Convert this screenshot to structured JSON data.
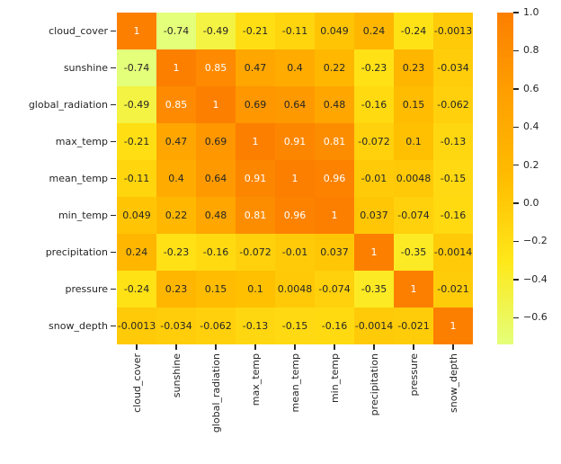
{
  "chart_data": {
    "type": "heatmap",
    "title": "",
    "xlabel": "",
    "ylabel": "",
    "categories": [
      "cloud_cover",
      "sunshine",
      "global_radiation",
      "max_temp",
      "mean_temp",
      "min_temp",
      "precipitation",
      "pressure",
      "snow_depth"
    ],
    "matrix": [
      [
        "1",
        "-0.74",
        "-0.49",
        "-0.21",
        "-0.11",
        "0.049",
        "0.24",
        "-0.24",
        "-0.0013"
      ],
      [
        "-0.74",
        "1",
        "0.85",
        "0.47",
        "0.4",
        "0.22",
        "-0.23",
        "0.23",
        "-0.034"
      ],
      [
        "-0.49",
        "0.85",
        "1",
        "0.69",
        "0.64",
        "0.48",
        "-0.16",
        "0.15",
        "-0.062"
      ],
      [
        "-0.21",
        "0.47",
        "0.69",
        "1",
        "0.91",
        "0.81",
        "-0.072",
        "0.1",
        "-0.13"
      ],
      [
        "-0.11",
        "0.4",
        "0.64",
        "0.91",
        "1",
        "0.96",
        "-0.01",
        "0.0048",
        "-0.15"
      ],
      [
        "0.049",
        "0.22",
        "0.48",
        "0.81",
        "0.96",
        "1",
        "0.037",
        "-0.074",
        "-0.16"
      ],
      [
        "0.24",
        "-0.23",
        "-0.16",
        "-0.072",
        "-0.01",
        "0.037",
        "1",
        "-0.35",
        "-0.0014"
      ],
      [
        "-0.24",
        "0.23",
        "0.15",
        "0.1",
        "0.0048",
        "-0.074",
        "-0.35",
        "1",
        "-0.021"
      ],
      [
        "-0.0013",
        "-0.034",
        "-0.062",
        "-0.13",
        "-0.15",
        "-0.16",
        "-0.0014",
        "-0.021",
        "1"
      ]
    ],
    "vmin": -0.74,
    "vmax": 1.0,
    "colormap": {
      "name": "Wistia",
      "stops": [
        "#e4ff7a",
        "#ffe81a",
        "#ffbd00",
        "#ffa000",
        "#fc7f00"
      ]
    },
    "annotation_text_light": "#ffffff",
    "annotation_text_dark": "#262626",
    "tick_color": "#262626",
    "colorbar_tick_labels": [
      "1.0",
      "0.8",
      "0.6",
      "0.4",
      "0.2",
      "0.0",
      "−0.2",
      "−0.4",
      "−0.6"
    ],
    "legend_position": "right-colorbar",
    "grid": false
  }
}
